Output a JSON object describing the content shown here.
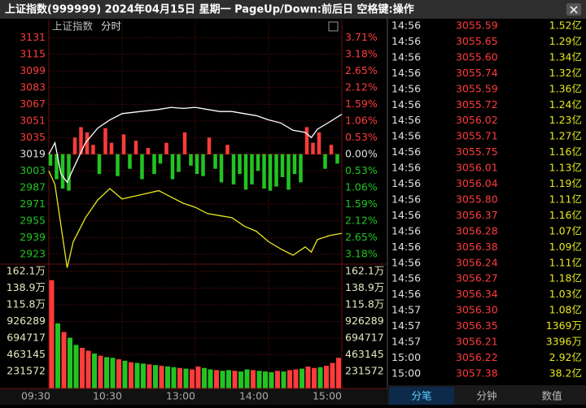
{
  "title_bar": {
    "text": "上证指数(999999) 2024年04月15日 星期一 PageUp/Down:前后日 空格键:操作"
  },
  "chart_data": [
    {
      "type": "line",
      "label": "上证指数",
      "mode": "分时",
      "xlim": [
        0,
        240
      ],
      "ylim": [
        2915,
        3139
      ],
      "baseline": 3019,
      "yticks": [
        3131,
        3115,
        3099,
        3083,
        3067,
        3051,
        3035,
        3019,
        3003,
        2987,
        2971,
        2955,
        2939,
        2923
      ],
      "y2lim": [
        -3.445,
        3.975
      ],
      "y2ticks": [
        {
          "value": 3.71,
          "label": "3.71%"
        },
        {
          "value": 3.18,
          "label": "3.18%"
        },
        {
          "value": 2.65,
          "label": "2.65%"
        },
        {
          "value": 2.12,
          "label": "2.12%"
        },
        {
          "value": 1.59,
          "label": "1.59%"
        },
        {
          "value": 1.06,
          "label": "1.06%"
        },
        {
          "value": 0.53,
          "label": "0.53%"
        },
        {
          "value": 0,
          "label": "0.00%"
        },
        {
          "value": -0.53,
          "label": "0.53%"
        },
        {
          "value": -1.06,
          "label": "1.06%"
        },
        {
          "value": -1.59,
          "label": "1.59%"
        },
        {
          "value": -2.12,
          "label": "2.12%"
        },
        {
          "value": -2.65,
          "label": "2.65%"
        },
        {
          "value": -3.18,
          "label": "3.18%"
        }
      ],
      "up_color": "#ff3b3b",
      "down_color": "#22c422",
      "flat_color": "#e0e0e0",
      "x": [
        0,
        5,
        10,
        15,
        20,
        30,
        40,
        50,
        60,
        75,
        90,
        100,
        110,
        120,
        130,
        140,
        150,
        160,
        170,
        180,
        190,
        200,
        210,
        215,
        220,
        230,
        240
      ],
      "series": [
        {
          "color": "#ffffff",
          "values": [
            3019,
            3030,
            3000,
            2992,
            3005,
            3030,
            3044,
            3052,
            3058,
            3060,
            3062,
            3064,
            3063,
            3064,
            3062,
            3060,
            3060,
            3058,
            3056,
            3052,
            3049,
            3042,
            3040,
            3035,
            3043,
            3050,
            3057.38
          ]
        },
        {
          "color": "#e8e820",
          "values": [
            3003,
            2990,
            2950,
            2910,
            2935,
            2958,
            2975,
            2986,
            2976,
            2980,
            2984,
            2978,
            2972,
            2968,
            2962,
            2960,
            2958,
            2950,
            2945,
            2935,
            2928,
            2922,
            2930,
            2925,
            2937,
            2941,
            2943
          ]
        }
      ],
      "bars_x": [
        0,
        5,
        10,
        15,
        20,
        25,
        30,
        35,
        40,
        45,
        50,
        55,
        60,
        65,
        70,
        75,
        80,
        85,
        90,
        95,
        100,
        105,
        110,
        115,
        120,
        125,
        130,
        135,
        140,
        145,
        150,
        155,
        160,
        165,
        170,
        175,
        180,
        185,
        190,
        195,
        200,
        205,
        210,
        215,
        220,
        225,
        230,
        235
      ],
      "bars": [
        3008,
        2995,
        2986,
        2984,
        3035,
        3045,
        3040,
        3028,
        3000,
        3044,
        3030,
        2998,
        3038,
        3005,
        3032,
        2995,
        3025,
        3000,
        3010,
        3030,
        2995,
        3002,
        3040,
        3008,
        3000,
        2998,
        3035,
        3005,
        2992,
        3028,
        2990,
        3000,
        2985,
        2990,
        3003,
        2986,
        2984,
        2988,
        2997,
        2985,
        3000,
        2992,
        3045,
        3030,
        3040,
        3005,
        3028,
        3010
      ]
    },
    {
      "type": "bar",
      "xlim": [
        0,
        240
      ],
      "ylim": [
        0,
        1621000
      ],
      "yticks": [
        {
          "value": 1621000,
          "label": "162.1万"
        },
        {
          "value": 1389000,
          "label": "138.9万"
        },
        {
          "value": 1158000,
          "label": "115.8万"
        },
        926289,
        694717,
        463145,
        231572
      ],
      "xticks": [
        {
          "value": 0,
          "label": "09:30"
        },
        {
          "value": 60,
          "label": "10:30"
        },
        {
          "value": 120,
          "label": "13:00"
        },
        {
          "value": 180,
          "label": "14:00"
        },
        {
          "value": 240,
          "label": "15:00"
        }
      ],
      "x": [
        0,
        5,
        10,
        15,
        20,
        25,
        30,
        35,
        40,
        45,
        50,
        55,
        60,
        65,
        70,
        75,
        80,
        85,
        90,
        95,
        100,
        105,
        110,
        115,
        120,
        125,
        130,
        135,
        140,
        145,
        150,
        155,
        160,
        165,
        170,
        175,
        180,
        185,
        190,
        195,
        200,
        205,
        210,
        215,
        220,
        225,
        230,
        235
      ],
      "values": [
        1500000,
        900000,
        780000,
        700000,
        600000,
        560000,
        520000,
        480000,
        450000,
        430000,
        420000,
        400000,
        380000,
        360000,
        350000,
        340000,
        330000,
        320000,
        310000,
        300000,
        290000,
        280000,
        270000,
        260000,
        300000,
        280000,
        260000,
        250000,
        240000,
        250000,
        240000,
        230000,
        260000,
        250000,
        240000,
        230000,
        220000,
        240000,
        230000,
        250000,
        260000,
        270000,
        300000,
        280000,
        290000,
        310000,
        350000,
        420000
      ],
      "colors": [
        "#ff3b3b",
        "#22c422",
        "#ff3b3b",
        "#22c422",
        "#22c422",
        "#ff3b3b",
        "#ff3b3b",
        "#22c422",
        "#ff3b3b",
        "#22c422",
        "#22c422",
        "#ff3b3b",
        "#22c422",
        "#ff3b3b",
        "#22c422",
        "#22c422",
        "#ff3b3b",
        "#22c422",
        "#ff3b3b",
        "#22c422",
        "#22c422",
        "#ff3b3b",
        "#22c422",
        "#ff3b3b",
        "#ff3b3b",
        "#22c422",
        "#22c422",
        "#ff3b3b",
        "#22c422",
        "#22c422",
        "#ff3b3b",
        "#22c422",
        "#22c422",
        "#ff3b3b",
        "#22c422",
        "#22c422",
        "#22c422",
        "#ff3b3b",
        "#22c422",
        "#ff3b3b",
        "#ff3b3b",
        "#22c422",
        "#ff3b3b",
        "#ff3b3b",
        "#22c422",
        "#ff3b3b",
        "#ff3b3b",
        "#ff3b3b"
      ]
    }
  ],
  "trades": {
    "rows": [
      [
        "14:56",
        "3055.59",
        "1.52亿"
      ],
      [
        "14:56",
        "3055.65",
        "1.29亿"
      ],
      [
        "14:56",
        "3055.60",
        "1.34亿"
      ],
      [
        "14:56",
        "3055.74",
        "1.32亿"
      ],
      [
        "14:56",
        "3055.59",
        "1.36亿"
      ],
      [
        "14:56",
        "3055.72",
        "1.24亿"
      ],
      [
        "14:56",
        "3056.02",
        "1.23亿"
      ],
      [
        "14:56",
        "3055.71",
        "1.27亿"
      ],
      [
        "14:56",
        "3055.75",
        "1.16亿"
      ],
      [
        "14:56",
        "3056.01",
        "1.13亿"
      ],
      [
        "14:56",
        "3056.04",
        "1.19亿"
      ],
      [
        "14:56",
        "3055.80",
        "1.11亿"
      ],
      [
        "14:56",
        "3056.37",
        "1.16亿"
      ],
      [
        "14:56",
        "3056.28",
        "1.07亿"
      ],
      [
        "14:56",
        "3056.38",
        "1.09亿"
      ],
      [
        "14:56",
        "3056.24",
        "1.11亿"
      ],
      [
        "14:56",
        "3056.27",
        "1.18亿"
      ],
      [
        "14:56",
        "3056.34",
        "1.03亿"
      ],
      [
        "14:57",
        "3056.30",
        "1.08亿"
      ],
      [
        "14:57",
        "3056.35",
        "1369万"
      ],
      [
        "14:57",
        "3056.21",
        "3396万"
      ],
      [
        "15:00",
        "3056.22",
        "2.92亿"
      ],
      [
        "15:00",
        "3057.38",
        "38.2亿"
      ]
    ],
    "tabs": [
      "分笔",
      "分钟",
      "数值"
    ]
  }
}
